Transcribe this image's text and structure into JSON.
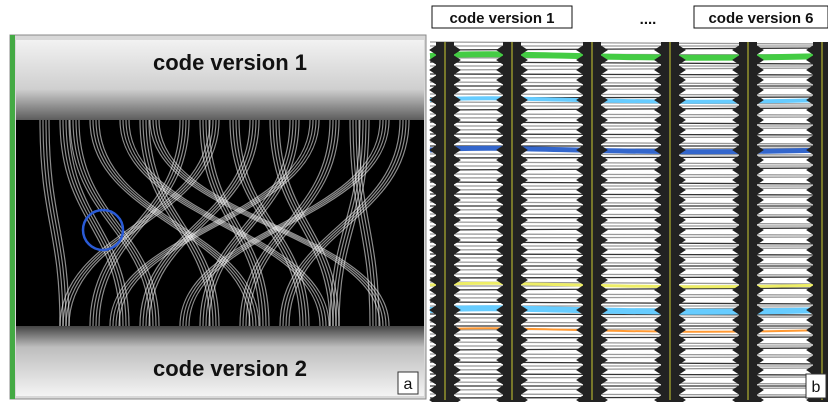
{
  "panel_a": {
    "top_label": "code version 1",
    "bottom_label": "code version 2",
    "tag": "a"
  },
  "panel_b": {
    "labels": [
      "code version 1",
      "code version 6"
    ],
    "ellipsis": "....",
    "tag": "b"
  }
}
